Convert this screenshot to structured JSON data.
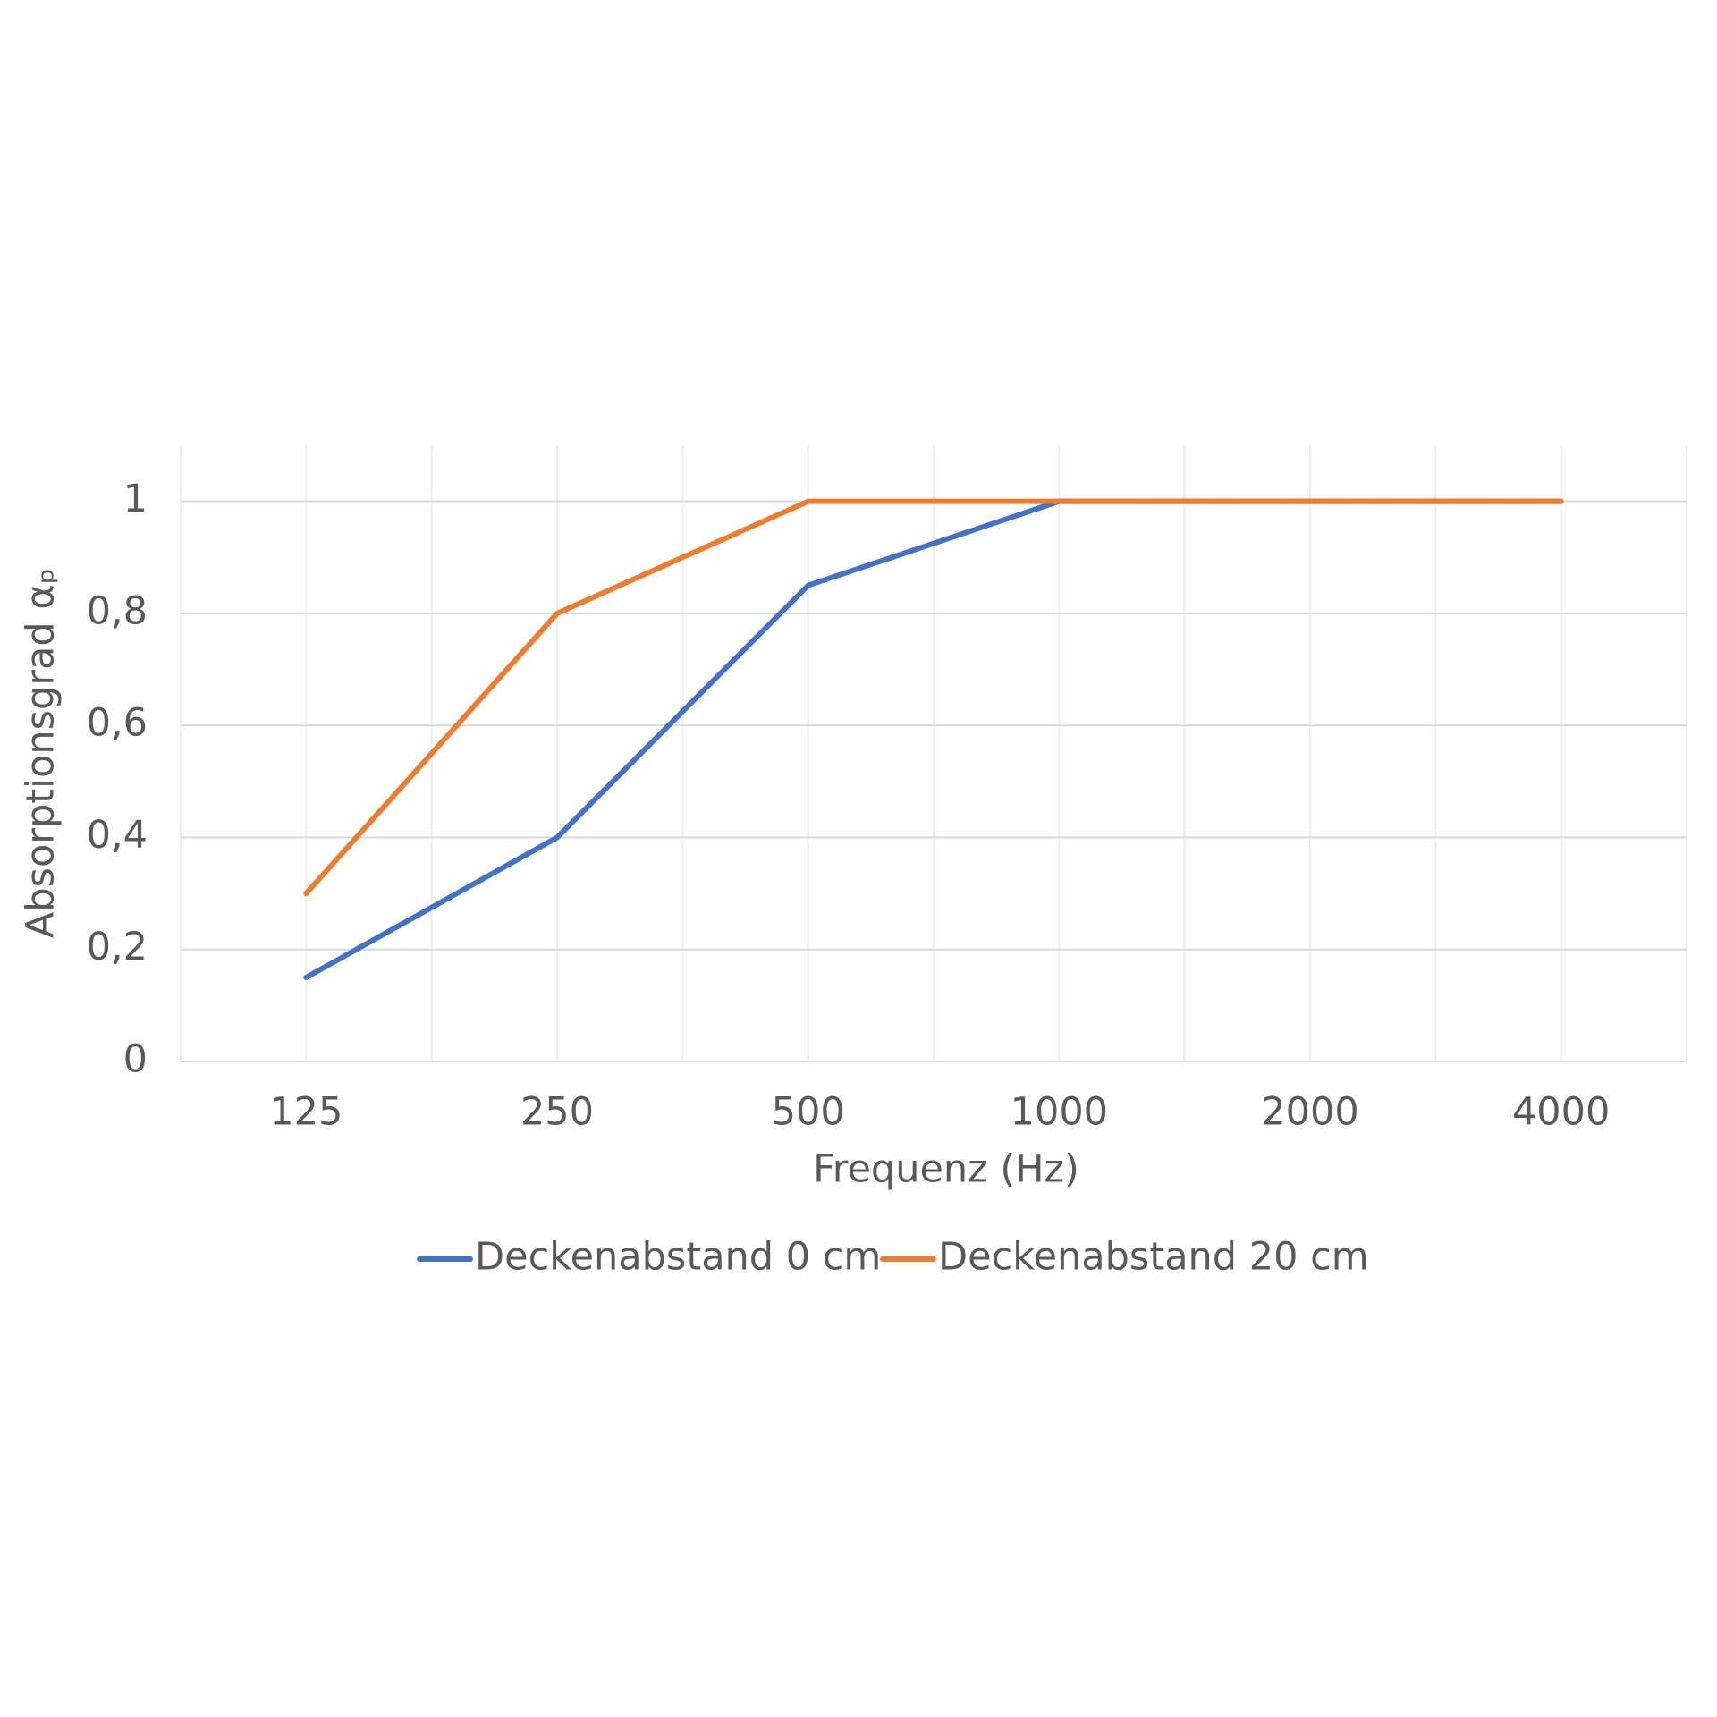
{
  "chart_data": {
    "type": "line",
    "y_label": "Absorptionsgrad αₚ",
    "x_label": "Frequenz (Hz)",
    "categories": [
      "125",
      "250",
      "500",
      "1000",
      "2000",
      "4000"
    ],
    "series": [
      {
        "name": "Deckenabstand 0 cm",
        "color": "#4472c4",
        "values": [
          0.15,
          0.4,
          0.85,
          1,
          1,
          1
        ]
      },
      {
        "name": "Deckenabstand 20 cm",
        "color": "#ed7d31",
        "values": [
          0.3,
          0.8,
          1,
          1,
          1,
          1
        ]
      }
    ],
    "ylim": [
      0,
      1.1
    ],
    "yticks": [
      0,
      {
        "value": 0.2,
        "label": "0,2"
      },
      {
        "value": 0.4,
        "label": "0,4"
      },
      {
        "value": 0.6,
        "label": "0,6"
      },
      {
        "value": 0.8,
        "label": "0,8"
      },
      1
    ],
    "grid": true,
    "legend": "bottom"
  }
}
